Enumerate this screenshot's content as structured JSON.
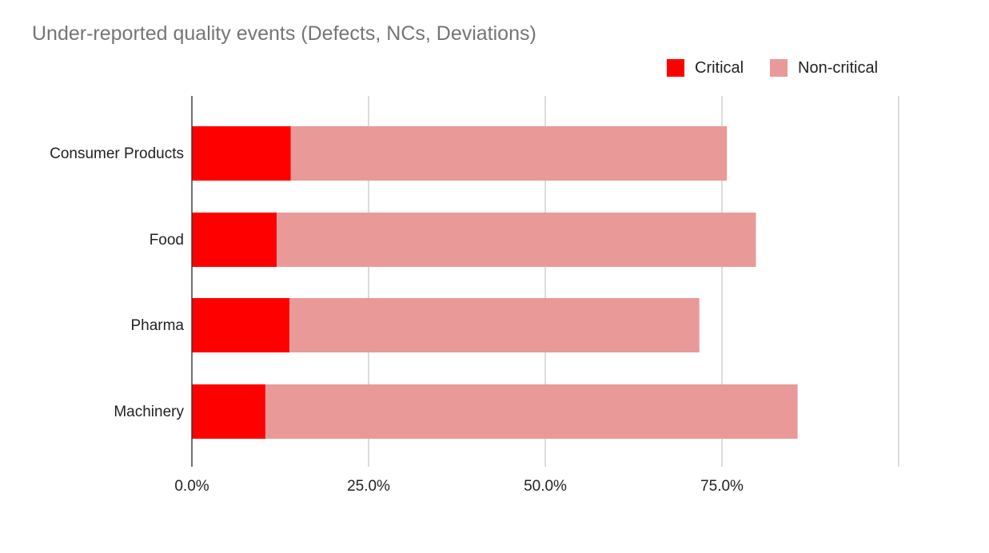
{
  "chart_data": {
    "type": "bar",
    "orientation": "horizontal",
    "stacked": true,
    "title": "Under-reported quality events (Defects, NCs, Deviations)",
    "categories": [
      "Consumer Products",
      "Food",
      "Pharma",
      "Machinery"
    ],
    "series": [
      {
        "name": "Critical",
        "color": "#ff0000",
        "values": [
          14.0,
          12.0,
          13.8,
          10.4
        ]
      },
      {
        "name": "Non-critical",
        "color": "#ea9999",
        "values": [
          61.7,
          67.8,
          58.0,
          75.3
        ]
      }
    ],
    "x_ticks": [
      "0.0%",
      "25.0%",
      "50.0%",
      "75.0%"
    ],
    "x_tick_values": [
      0,
      25,
      50,
      75
    ],
    "xlim": [
      0,
      100
    ],
    "xlabel": "",
    "ylabel": "",
    "grid": true,
    "legend_position": "top-right"
  }
}
